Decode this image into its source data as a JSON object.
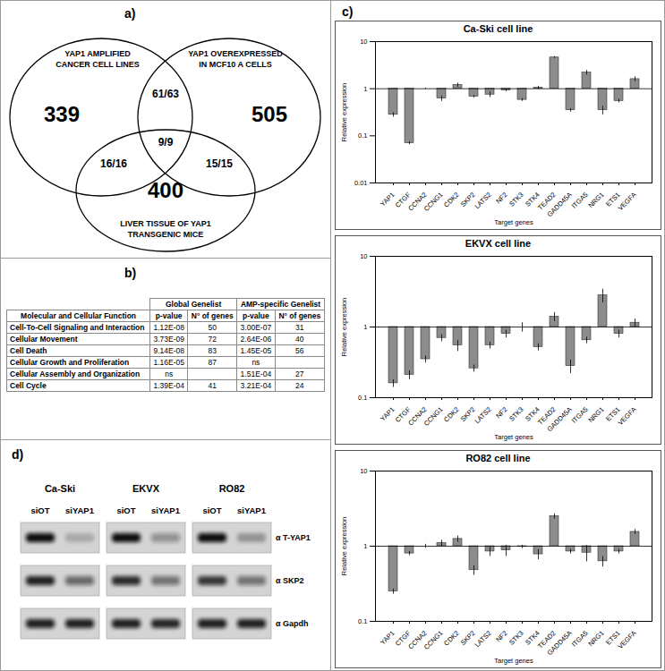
{
  "panel_labels": {
    "a": "a)",
    "b": "b)",
    "c": "c)",
    "d": "d)"
  },
  "venn": {
    "sets": [
      {
        "label": [
          "YAP1 AMPLIFIED",
          "CANCER CELL LINES"
        ],
        "only": 339
      },
      {
        "label": [
          "YAP1 OVEREXPRESSED",
          "IN MCF10 A CELLS"
        ],
        "only": 505
      },
      {
        "label": [
          "LIVER TISSUE OF YAP1",
          "TRANSGENIC MICE"
        ],
        "only": 400
      }
    ],
    "pairs": [
      {
        "sets": [
          0,
          1
        ],
        "label": "61/63"
      },
      {
        "sets": [
          0,
          2
        ],
        "label": "16/16"
      },
      {
        "sets": [
          1,
          2
        ],
        "label": "15/15"
      }
    ],
    "all": "9/9"
  },
  "table": {
    "groups": [
      "Global Genelist",
      "AMP-specific Genelist"
    ],
    "columns": [
      "Molecular and Cellular Function",
      "p-value",
      "N° of genes",
      "p-value",
      "N° of genes"
    ],
    "rows": [
      [
        "Cell-To-Cell Signaling and Interaction",
        "1.12E-08",
        50,
        "3.00E-07",
        31
      ],
      [
        "Cellular Movement",
        "3.73E-09",
        72,
        "2.64E-06",
        40
      ],
      [
        "Cell Death",
        "9.14E-08",
        83,
        "1.45E-05",
        56
      ],
      [
        "Cellular Growth and Proliferation",
        "1.16E-05",
        87,
        "ns",
        null
      ],
      [
        "Cellular Assembly and Organization",
        "ns",
        null,
        "1.51E-04",
        27
      ],
      [
        "Cell Cycle",
        "1.39E-04",
        41,
        "3.21E-04",
        24
      ]
    ]
  },
  "blot": {
    "cell_lines": [
      "Ca-Ski",
      "EKVX",
      "RO82"
    ],
    "lanes": [
      "siOT",
      "siYAP1"
    ],
    "rows": [
      "α T-YAP1",
      "α SKP2",
      "α Gapdh"
    ],
    "band_intensity": [
      [
        [
          1.0,
          0.2
        ],
        [
          1.0,
          0.35
        ],
        [
          1.0,
          0.3
        ]
      ],
      [
        [
          0.9,
          0.55
        ],
        [
          0.85,
          0.5
        ],
        [
          0.8,
          0.5
        ]
      ],
      [
        [
          0.9,
          0.9
        ],
        [
          0.9,
          0.88
        ],
        [
          0.9,
          0.9
        ]
      ]
    ]
  },
  "chart_data": [
    {
      "type": "bar",
      "title": "Ca-Ski cell line",
      "x_label": "Target genes",
      "y_label": "Relative expression",
      "categories": [
        "YAP1",
        "CTGF",
        "CCNA2",
        "CCNG1",
        "CDK2",
        "SKP2",
        "LATS2",
        "NF2",
        "STK3",
        "STK4",
        "TEAD2",
        "GADD45A",
        "ITGA5",
        "NRG1",
        "ETS1",
        "VEGFA"
      ],
      "values": [
        0.28,
        0.07,
        1.0,
        0.62,
        1.2,
        0.68,
        0.75,
        0.92,
        0.58,
        1.05,
        4.6,
        0.35,
        2.2,
        0.35,
        0.55,
        1.6
      ],
      "errors": [
        0.03,
        0.005,
        0.03,
        0.08,
        0.12,
        0.04,
        0.1,
        0.05,
        0.04,
        0.08,
        0.2,
        0.03,
        0.25,
        0.07,
        0.05,
        0.2
      ],
      "baseline": 1,
      "color": "#8c8c8c",
      "log": "y",
      "grid": false,
      "ylim": [
        0.01,
        10
      ],
      "yticks": [
        0.01,
        0.1,
        1,
        10
      ]
    },
    {
      "type": "bar",
      "title": "EKVX cell line",
      "x_label": "Target genes",
      "y_label": "Relative expression",
      "categories": [
        "YAP1",
        "CTGF",
        "CCNA2",
        "CCNG1",
        "CDK2",
        "SKP2",
        "LATS2",
        "NF2",
        "STK3",
        "STK4",
        "TEAD2",
        "GADD45A",
        "ITGA5",
        "NRG1",
        "ETS1",
        "VEGFA"
      ],
      "values": [
        0.16,
        0.21,
        0.35,
        0.7,
        0.55,
        0.26,
        0.55,
        0.8,
        1.0,
        0.52,
        1.4,
        0.28,
        0.65,
        2.8,
        0.8,
        1.15
      ],
      "errors": [
        0.02,
        0.03,
        0.04,
        0.08,
        0.1,
        0.03,
        0.06,
        0.1,
        0.15,
        0.06,
        0.2,
        0.06,
        0.07,
        0.6,
        0.1,
        0.15
      ],
      "baseline": 1,
      "color": "#8c8c8c",
      "log": "y",
      "grid": false,
      "ylim": [
        0.1,
        10
      ],
      "yticks": [
        0.1,
        1,
        10
      ]
    },
    {
      "type": "bar",
      "title": "RO82 cell line",
      "x_label": "Target genes",
      "y_label": "Relative expression",
      "categories": [
        "YAP1",
        "CTGF",
        "CCNA2",
        "CCNG1",
        "CDK2",
        "SKP2",
        "LATS2",
        "NF2",
        "STK3",
        "STK4",
        "TEAD2",
        "GADD45A",
        "ITGA5",
        "NRG1",
        "ETS1",
        "VEGFA"
      ],
      "values": [
        0.25,
        0.8,
        1.0,
        1.1,
        1.25,
        0.48,
        0.85,
        0.88,
        0.98,
        0.78,
        2.5,
        0.85,
        0.82,
        0.63,
        0.85,
        1.55
      ],
      "errors": [
        0.02,
        0.05,
        0.06,
        0.1,
        0.12,
        0.07,
        0.12,
        0.15,
        0.05,
        0.12,
        0.2,
        0.06,
        0.2,
        0.1,
        0.06,
        0.12
      ],
      "baseline": 1,
      "color": "#8c8c8c",
      "log": "y",
      "grid": false,
      "ylim": [
        0.1,
        10
      ],
      "yticks": [
        0.1,
        1,
        10
      ]
    }
  ]
}
